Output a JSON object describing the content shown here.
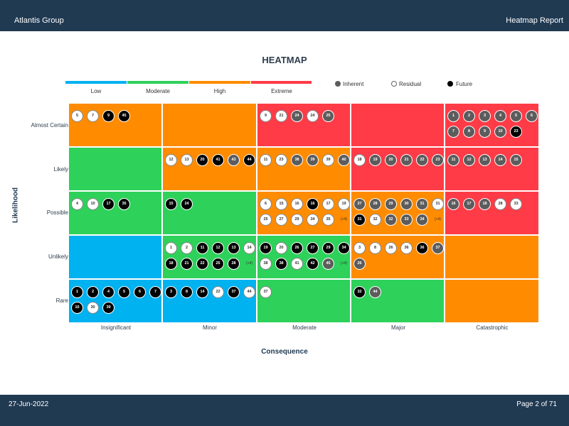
{
  "header": {
    "company": "Atlantis Group",
    "report": "Heatmap Report"
  },
  "footer": {
    "date": "27-Jun-2022",
    "page": "Page 2 of 71"
  },
  "title": "HEATMAP",
  "colors": {
    "Low": "#00b2f0",
    "Moderate": "#2ed15a",
    "High": "#ff8c00",
    "Extreme": "#ff3b47",
    "inherent": "#5c5c5c",
    "residual": "#ffffff",
    "future": "#000000",
    "bar": "#203a52"
  },
  "risk_legend": [
    "Low",
    "Moderate",
    "High",
    "Extreme"
  ],
  "type_legend": [
    {
      "key": "inherent",
      "label": "Inherent"
    },
    {
      "key": "residual",
      "label": "Residual"
    },
    {
      "key": "future",
      "label": "Future"
    }
  ],
  "y_axis": {
    "label": "Likelihood",
    "ticks": [
      "Almost Certain",
      "Likely",
      "Possible",
      "Unlikely",
      "Rare"
    ]
  },
  "x_axis": {
    "label": "Consequence",
    "ticks": [
      "Insignificant",
      "Minor",
      "Moderate",
      "Major",
      "Catastrophic"
    ]
  },
  "grid": [
    [
      {
        "risk": "High",
        "items": [
          [
            "5",
            "R"
          ],
          [
            "7",
            "R"
          ],
          [
            "9",
            "F"
          ],
          [
            "45",
            "F"
          ]
        ]
      },
      {
        "risk": "High",
        "items": []
      },
      {
        "risk": "Extreme",
        "items": [
          [
            "9",
            "R"
          ],
          [
            "21",
            "R"
          ],
          [
            "24",
            "I"
          ],
          [
            "24",
            "R"
          ],
          [
            "25",
            "I"
          ]
        ]
      },
      {
        "risk": "Extreme",
        "items": []
      },
      {
        "risk": "Extreme",
        "items": [
          [
            "1",
            "I"
          ],
          [
            "2",
            "I"
          ],
          [
            "3",
            "I"
          ],
          [
            "4",
            "I"
          ],
          [
            "5",
            "I"
          ],
          [
            "6",
            "I"
          ],
          [
            "7",
            "I"
          ],
          [
            "8",
            "I"
          ],
          [
            "9",
            "I"
          ],
          [
            "10",
            "I"
          ],
          [
            "23",
            "F"
          ]
        ]
      }
    ],
    [
      {
        "risk": "Moderate",
        "items": []
      },
      {
        "risk": "High",
        "items": [
          [
            "12",
            "R"
          ],
          [
            "13",
            "R"
          ],
          [
            "20",
            "F"
          ],
          [
            "41",
            "F"
          ],
          [
            "43",
            "I"
          ],
          [
            "44",
            "F"
          ]
        ]
      },
      {
        "risk": "High",
        "items": [
          [
            "11",
            "R"
          ],
          [
            "23",
            "R"
          ],
          [
            "38",
            "I"
          ],
          [
            "39",
            "I"
          ],
          [
            "39",
            "R"
          ],
          [
            "40",
            "I"
          ]
        ]
      },
      {
        "risk": "Extreme",
        "items": [
          [
            "18",
            "R"
          ],
          [
            "19",
            "I"
          ],
          [
            "20",
            "I"
          ],
          [
            "21",
            "I"
          ],
          [
            "22",
            "I"
          ],
          [
            "23",
            "I"
          ]
        ]
      },
      {
        "risk": "Extreme",
        "items": [
          [
            "11",
            "I"
          ],
          [
            "12",
            "I"
          ],
          [
            "13",
            "I"
          ],
          [
            "14",
            "I"
          ],
          [
            "15",
            "I"
          ]
        ]
      }
    ],
    [
      {
        "risk": "Moderate",
        "items": [
          [
            "4",
            "R"
          ],
          [
            "10",
            "R"
          ],
          [
            "17",
            "F"
          ],
          [
            "35",
            "F"
          ]
        ]
      },
      {
        "risk": "Moderate",
        "items": [
          [
            "15",
            "F"
          ],
          [
            "24",
            "F"
          ]
        ]
      },
      {
        "risk": "High",
        "items": [
          [
            "6",
            "R"
          ],
          [
            "15",
            "R"
          ],
          [
            "16",
            "R"
          ],
          [
            "16",
            "F"
          ],
          [
            "17",
            "R"
          ],
          [
            "19",
            "R"
          ],
          [
            "25",
            "R"
          ],
          [
            "27",
            "R"
          ],
          [
            "29",
            "R"
          ],
          [
            "34",
            "R"
          ],
          [
            "35",
            "R"
          ]
        ],
        "more": "(+4)"
      },
      {
        "risk": "High",
        "items": [
          [
            "27",
            "I"
          ],
          [
            "28",
            "I"
          ],
          [
            "29",
            "I"
          ],
          [
            "30",
            "I"
          ],
          [
            "31",
            "I"
          ],
          [
            "31",
            "R"
          ],
          [
            "31",
            "F"
          ],
          [
            "32",
            "R"
          ],
          [
            "32",
            "I"
          ],
          [
            "33",
            "I"
          ],
          [
            "34",
            "I"
          ]
        ],
        "more": "(+4)"
      },
      {
        "risk": "Extreme",
        "items": [
          [
            "16",
            "I"
          ],
          [
            "17",
            "I"
          ],
          [
            "18",
            "I"
          ],
          [
            "28",
            "R"
          ],
          [
            "33",
            "R"
          ]
        ]
      }
    ],
    [
      {
        "risk": "Low",
        "items": []
      },
      {
        "risk": "Moderate",
        "items": [
          [
            "1",
            "R"
          ],
          [
            "2",
            "R"
          ],
          [
            "11",
            "F"
          ],
          [
            "12",
            "F"
          ],
          [
            "13",
            "F"
          ],
          [
            "14",
            "R"
          ],
          [
            "18",
            "F"
          ],
          [
            "21",
            "F"
          ],
          [
            "22",
            "F"
          ],
          [
            "25",
            "F"
          ],
          [
            "28",
            "F"
          ]
        ],
        "more": "(+4)"
      },
      {
        "risk": "Moderate",
        "items": [
          [
            "19",
            "F"
          ],
          [
            "20",
            "R"
          ],
          [
            "26",
            "F"
          ],
          [
            "27",
            "F"
          ],
          [
            "29",
            "F"
          ],
          [
            "34",
            "F"
          ],
          [
            "38",
            "R"
          ],
          [
            "38",
            "F"
          ],
          [
            "41",
            "R"
          ],
          [
            "42",
            "F"
          ],
          [
            "45",
            "I"
          ]
        ],
        "more": "(+4)"
      },
      {
        "risk": "High",
        "items": [
          [
            "3",
            "R"
          ],
          [
            "8",
            "R"
          ],
          [
            "26",
            "R"
          ],
          [
            "36",
            "R"
          ],
          [
            "36",
            "F"
          ],
          [
            "37",
            "I"
          ],
          [
            "26",
            "I"
          ]
        ]
      },
      {
        "risk": "High",
        "items": []
      }
    ],
    [
      {
        "risk": "Low",
        "items": [
          [
            "1",
            "F"
          ],
          [
            "2",
            "F"
          ],
          [
            "4",
            "F"
          ],
          [
            "5",
            "F"
          ],
          [
            "6",
            "F"
          ],
          [
            "7",
            "F"
          ],
          [
            "10",
            "F"
          ],
          [
            "30",
            "R"
          ],
          [
            "39",
            "F"
          ]
        ]
      },
      {
        "risk": "Low",
        "items": [
          [
            "3",
            "F"
          ],
          [
            "8",
            "F"
          ],
          [
            "14",
            "F"
          ],
          [
            "22",
            "R"
          ],
          [
            "37",
            "F"
          ],
          [
            "44",
            "R"
          ]
        ]
      },
      {
        "risk": "Moderate",
        "items": [
          [
            "37",
            "R"
          ]
        ]
      },
      {
        "risk": "Moderate",
        "items": [
          [
            "32",
            "F"
          ],
          [
            "44",
            "I"
          ]
        ]
      },
      {
        "risk": "High",
        "items": []
      }
    ]
  ]
}
